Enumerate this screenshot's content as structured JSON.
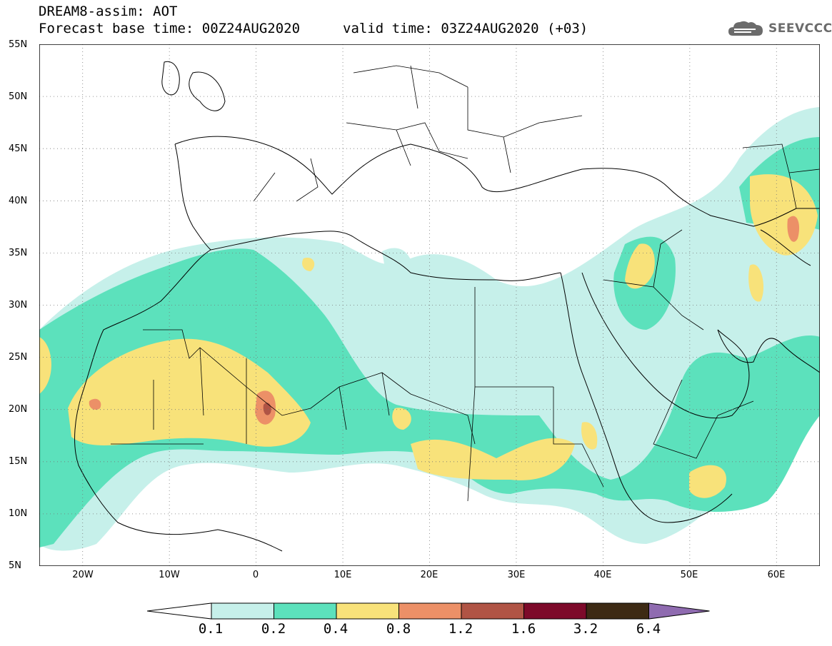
{
  "header": {
    "line1": "DREAM8-assim: AOT",
    "base_time": "Forecast base time: 00Z24AUG2020",
    "valid_time": "valid time: 03Z24AUG2020 (+03)"
  },
  "logo": {
    "text": "SEEVCCC",
    "icon": "cloud-icon",
    "color": "#6b6b6b"
  },
  "map": {
    "lon_range": [
      -25,
      65
    ],
    "lat_range": [
      5,
      55
    ],
    "lat_labels": [
      "55N",
      "50N",
      "45N",
      "40N",
      "35N",
      "30N",
      "25N",
      "20N",
      "15N",
      "10N",
      "5N"
    ],
    "lon_labels": [
      "20W",
      "10W",
      "0",
      "10E",
      "20E",
      "30E",
      "40E",
      "50E",
      "60E"
    ],
    "grid": true
  },
  "colorbar": {
    "labels": [
      "0.1",
      "0.2",
      "0.4",
      "0.8",
      "1.2",
      "1.6",
      "3.2",
      "6.4"
    ],
    "colors": [
      "#ffffff",
      "#c6f0ea",
      "#5ce1bc",
      "#f8e27a",
      "#ec9067",
      "#b05445",
      "#7d0a2a",
      "#3d2a14",
      "#8f6bb0"
    ]
  }
}
